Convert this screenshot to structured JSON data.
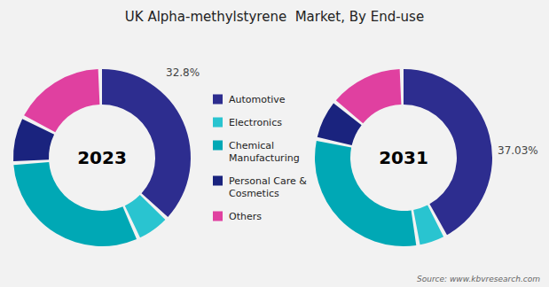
{
  "chart_data": {
    "type": "pie",
    "title": "UK Alpha-methylstyrene  Market, By End-use",
    "categories": [
      "Automotive",
      "Electronics",
      "Chemical\nManufacturing",
      "Personal Care &\nCosmetics",
      "Others"
    ],
    "colors": [
      "#2d2d8f",
      "#29c4d0",
      "#00a8b5",
      "#1a237e",
      "#e040a0"
    ],
    "series": [
      {
        "name": "2023",
        "values": [
          32.8,
          5.5,
          27.0,
          7.5,
          15.0
        ]
      },
      {
        "name": "2031",
        "values": [
          37.03,
          4.5,
          27.0,
          6.5,
          12.0
        ]
      }
    ],
    "annotations": [
      "32.8%",
      "37.03%"
    ],
    "source": "Source: www.kbvresearch.com",
    "legend": "center"
  }
}
